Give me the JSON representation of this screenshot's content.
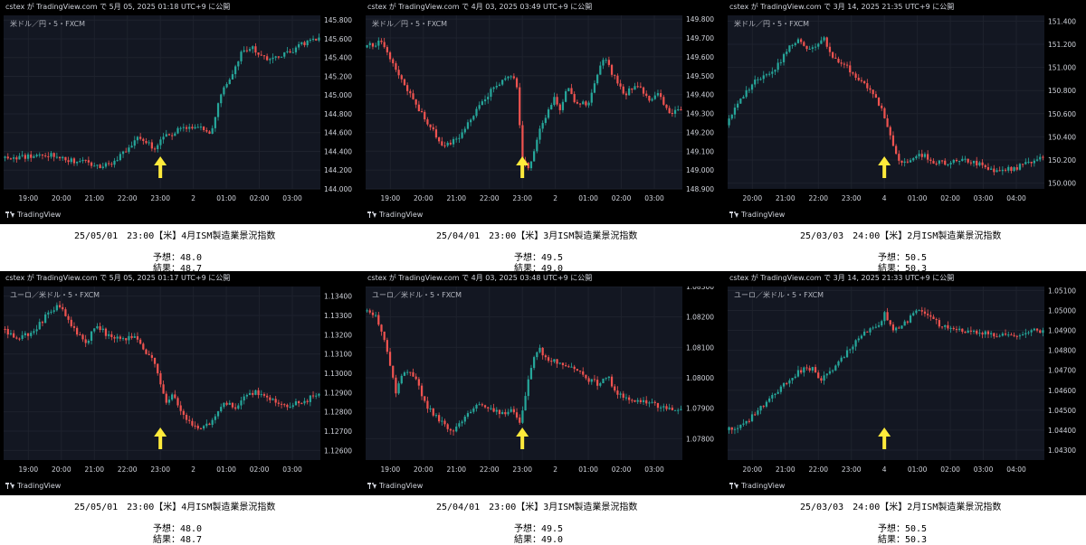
{
  "panels": [
    {
      "publish_info": "cstex が TradingView.com で 5月 05, 2025 01:18 UTC+9 に公開",
      "symbol": "米ドル／円・5・FXCM",
      "brand": "TradingView",
      "caption": {
        "title": "25/05/01　23:00【米】4月ISM製造業景況指数",
        "forecast": "予想：48.0",
        "result": "結果：48.7"
      },
      "chart_data": {
        "type": "candlestick",
        "x_ticks": [
          "19:00",
          "20:00",
          "21:00",
          "22:00",
          "23:00",
          "2",
          "01:00",
          "02:00",
          "03:00"
        ],
        "y_ticks": [
          "145.800",
          "145.600",
          "145.400",
          "145.200",
          "145.000",
          "144.800",
          "144.600",
          "144.400",
          "144.200",
          "144.000"
        ],
        "ylim": [
          144.0,
          145.85
        ],
        "event_marker": "23:00",
        "path": [
          [
            0,
            144.33
          ],
          [
            10,
            144.35
          ],
          [
            14,
            144.37
          ],
          [
            18,
            144.35
          ],
          [
            22,
            144.3
          ],
          [
            28,
            144.27
          ],
          [
            32,
            144.24
          ],
          [
            34,
            144.26
          ],
          [
            36,
            144.3
          ],
          [
            40,
            144.45
          ],
          [
            43,
            144.55
          ],
          [
            46,
            144.5
          ],
          [
            48,
            144.4
          ],
          [
            50,
            144.52
          ],
          [
            55,
            144.62
          ],
          [
            58,
            144.64
          ],
          [
            63,
            144.66
          ],
          [
            66,
            144.55
          ],
          [
            67,
            144.75
          ],
          [
            70,
            145.1
          ],
          [
            74,
            145.3
          ],
          [
            75,
            145.45
          ],
          [
            79,
            145.5
          ],
          [
            83,
            145.38
          ],
          [
            88,
            145.43
          ],
          [
            91,
            145.45
          ],
          [
            95,
            145.55
          ],
          [
            100,
            145.62
          ],
          [
            108,
            145.6
          ]
        ]
      }
    },
    {
      "publish_info": "cstex が TradingView.com で 4月 03, 2025 03:49 UTC+9 に公開",
      "symbol": "米ドル／円・5・FXCM",
      "brand": "TradingView",
      "caption": {
        "title": "25/04/01　23:00【米】3月ISM製造業景況指数",
        "forecast": "予想：49.5",
        "result": "結果：49.0"
      },
      "chart_data": {
        "type": "candlestick",
        "x_ticks": [
          "19:00",
          "20:00",
          "21:00",
          "22:00",
          "23:00",
          "2",
          "01:00",
          "02:00",
          "03:00"
        ],
        "y_ticks": [
          "149.800",
          "149.700",
          "149.600",
          "149.500",
          "149.400",
          "149.300",
          "149.200",
          "149.100",
          "149.000",
          "148.900"
        ],
        "ylim": [
          148.9,
          149.82
        ],
        "event_marker": "23:00",
        "path": [
          [
            0,
            149.65
          ],
          [
            5,
            149.68
          ],
          [
            8,
            149.6
          ],
          [
            11,
            149.5
          ],
          [
            15,
            149.38
          ],
          [
            20,
            149.25
          ],
          [
            25,
            149.12
          ],
          [
            30,
            149.18
          ],
          [
            34,
            149.28
          ],
          [
            40,
            149.42
          ],
          [
            45,
            149.5
          ],
          [
            48,
            149.48
          ],
          [
            50,
            149.05
          ],
          [
            52,
            149.0
          ],
          [
            55,
            149.2
          ],
          [
            58,
            149.3
          ],
          [
            60,
            149.4
          ],
          [
            62,
            149.3
          ],
          [
            64,
            149.45
          ],
          [
            67,
            149.35
          ],
          [
            71,
            149.35
          ],
          [
            74,
            149.52
          ],
          [
            76,
            149.6
          ],
          [
            78,
            149.52
          ],
          [
            82,
            149.4
          ],
          [
            86,
            149.45
          ],
          [
            90,
            149.38
          ],
          [
            93,
            149.4
          ],
          [
            96,
            149.3
          ],
          [
            100,
            149.33
          ]
        ]
      }
    },
    {
      "publish_info": "cstex が TradingView.com で 3月 14, 2025 21:35 UTC+9 に公開",
      "symbol": "米ドル／円・5・FXCM",
      "brand": "TradingView",
      "caption": {
        "title": "25/03/03　24:00【米】2月ISM製造業景況指数",
        "forecast": "予想：50.5",
        "result": "結果：50.3"
      },
      "chart_data": {
        "type": "candlestick",
        "x_ticks": [
          "20:00",
          "21:00",
          "22:00",
          "23:00",
          "4",
          "01:00",
          "02:00",
          "03:00",
          "04:00"
        ],
        "y_ticks": [
          "151.400",
          "151.200",
          "151.000",
          "150.800",
          "150.600",
          "150.400",
          "150.200",
          "150.000"
        ],
        "ylim": [
          149.95,
          151.45
        ],
        "event_marker": "24:00",
        "path": [
          [
            0,
            150.5
          ],
          [
            5,
            150.75
          ],
          [
            10,
            150.9
          ],
          [
            15,
            150.95
          ],
          [
            18,
            151.1
          ],
          [
            20,
            151.2
          ],
          [
            23,
            151.25
          ],
          [
            26,
            151.15
          ],
          [
            29,
            151.2
          ],
          [
            31,
            151.25
          ],
          [
            33,
            151.12
          ],
          [
            36,
            151.05
          ],
          [
            40,
            150.95
          ],
          [
            44,
            150.85
          ],
          [
            48,
            150.7
          ],
          [
            51,
            150.5
          ],
          [
            53,
            150.3
          ],
          [
            55,
            150.18
          ],
          [
            58,
            150.2
          ],
          [
            62,
            150.25
          ],
          [
            65,
            150.18
          ],
          [
            70,
            150.17
          ],
          [
            75,
            150.2
          ],
          [
            80,
            150.17
          ],
          [
            85,
            150.1
          ],
          [
            90,
            150.12
          ],
          [
            95,
            150.17
          ],
          [
            100,
            150.22
          ]
        ]
      }
    },
    {
      "publish_info": "cstex が TradingView.com で 5月 05, 2025 01:17 UTC+9 に公開",
      "symbol": "ユーロ／米ドル・5・FXCM",
      "brand": "TradingView",
      "caption": {
        "title": "25/05/01　23:00【米】4月ISM製造業景況指数",
        "forecast": "予想：48.0",
        "result": "結果：48.7"
      },
      "chart_data": {
        "type": "candlestick",
        "x_ticks": [
          "19:00",
          "20:00",
          "21:00",
          "22:00",
          "23:00",
          "2",
          "01:00",
          "02:00",
          "03:00"
        ],
        "y_ticks": [
          "1.13400",
          "1.13300",
          "1.13200",
          "1.13100",
          "1.13000",
          "1.12900",
          "1.12800",
          "1.12700",
          "1.12600"
        ],
        "ylim": [
          1.1255,
          1.1345
        ],
        "event_marker": "23:00",
        "path": [
          [
            0,
            1.1323
          ],
          [
            5,
            1.1318
          ],
          [
            10,
            1.1322
          ],
          [
            14,
            1.133
          ],
          [
            18,
            1.1335
          ],
          [
            22,
            1.1325
          ],
          [
            26,
            1.1315
          ],
          [
            30,
            1.1325
          ],
          [
            33,
            1.132
          ],
          [
            37,
            1.1318
          ],
          [
            42,
            1.1318
          ],
          [
            46,
            1.131
          ],
          [
            48,
            1.1305
          ],
          [
            50,
            1.1295
          ],
          [
            52,
            1.1285
          ],
          [
            54,
            1.129
          ],
          [
            58,
            1.1275
          ],
          [
            62,
            1.1272
          ],
          [
            66,
            1.1275
          ],
          [
            70,
            1.1285
          ],
          [
            74,
            1.1282
          ],
          [
            78,
            1.129
          ],
          [
            82,
            1.129
          ],
          [
            86,
            1.1285
          ],
          [
            90,
            1.1283
          ],
          [
            95,
            1.1285
          ],
          [
            100,
            1.129
          ]
        ]
      }
    },
    {
      "publish_info": "cstex が TradingView.com で 4月 03, 2025 03:48 UTC+9 に公開",
      "symbol": "ユーロ／米ドル・5・FXCM",
      "brand": "TradingView",
      "caption": {
        "title": "25/04/01　23:00【米】3月ISM製造業景況指数",
        "forecast": "予想：49.5",
        "result": "結果：49.0"
      },
      "chart_data": {
        "type": "candlestick",
        "x_ticks": [
          "19:00",
          "20:00",
          "21:00",
          "22:00",
          "23:00",
          "2",
          "01:00",
          "02:00",
          "03:00"
        ],
        "y_ticks": [
          "1.08300",
          "1.08200",
          "1.08100",
          "1.08000",
          "1.07900",
          "1.07800"
        ],
        "ylim": [
          1.0773,
          1.083
        ],
        "event_marker": "23:00",
        "path": [
          [
            0,
            1.0822
          ],
          [
            4,
            1.082
          ],
          [
            7,
            1.081
          ],
          [
            10,
            1.0795
          ],
          [
            13,
            1.0803
          ],
          [
            16,
            1.08
          ],
          [
            20,
            1.079
          ],
          [
            25,
            1.0785
          ],
          [
            28,
            1.0782
          ],
          [
            32,
            1.0787
          ],
          [
            36,
            1.0792
          ],
          [
            40,
            1.079
          ],
          [
            44,
            1.0788
          ],
          [
            47,
            1.079
          ],
          [
            49,
            1.0785
          ],
          [
            51,
            1.0795
          ],
          [
            53,
            1.0805
          ],
          [
            55,
            1.081
          ],
          [
            58,
            1.0806
          ],
          [
            62,
            1.0805
          ],
          [
            66,
            1.0803
          ],
          [
            70,
            1.08
          ],
          [
            74,
            1.0798
          ],
          [
            77,
            1.08
          ],
          [
            80,
            1.0795
          ],
          [
            85,
            1.0793
          ],
          [
            90,
            1.0792
          ],
          [
            95,
            1.079
          ],
          [
            100,
            1.0789
          ]
        ]
      }
    },
    {
      "publish_info": "cstex が TradingView.com で 3月 14, 2025 21:33 UTC+9 に公開",
      "symbol": "ユーロ／米ドル・5・FXCM",
      "brand": "TradingView",
      "caption": {
        "title": "25/03/03　24:00【米】2月ISM製造業景況指数",
        "forecast": "予想：50.5",
        "result": "結果：50.3"
      },
      "chart_data": {
        "type": "candlestick",
        "x_ticks": [
          "20:00",
          "21:00",
          "22:00",
          "23:00",
          "4",
          "01:00",
          "02:00",
          "03:00",
          "04:00"
        ],
        "y_ticks": [
          "1.05100",
          "1.05000",
          "1.04900",
          "1.04800",
          "1.04700",
          "1.04600",
          "1.04500",
          "1.04400",
          "1.04300"
        ],
        "ylim": [
          1.0425,
          1.0512
        ],
        "event_marker": "24:00",
        "path": [
          [
            0,
            1.044
          ],
          [
            5,
            1.0442
          ],
          [
            10,
            1.045
          ],
          [
            15,
            1.0458
          ],
          [
            20,
            1.0465
          ],
          [
            25,
            1.0472
          ],
          [
            28,
            1.047
          ],
          [
            30,
            1.0465
          ],
          [
            33,
            1.047
          ],
          [
            37,
            1.0477
          ],
          [
            41,
            1.0485
          ],
          [
            45,
            1.049
          ],
          [
            48,
            1.0493
          ],
          [
            50,
            1.0498
          ],
          [
            53,
            1.049
          ],
          [
            56,
            1.0493
          ],
          [
            60,
            1.05
          ],
          [
            64,
            1.0498
          ],
          [
            68,
            1.0492
          ],
          [
            72,
            1.049
          ],
          [
            76,
            1.049
          ],
          [
            80,
            1.0489
          ],
          [
            84,
            1.0488
          ],
          [
            88,
            1.0487
          ],
          [
            92,
            1.0488
          ],
          [
            96,
            1.049
          ],
          [
            100,
            1.049
          ]
        ]
      }
    }
  ],
  "colors": {
    "up": "#26a69a",
    "down": "#ef5350",
    "marker": "#ffeb3b",
    "background": "#000000",
    "plot_background": "#131722",
    "grid": "#1e222d",
    "text": "#d1d4dc"
  }
}
